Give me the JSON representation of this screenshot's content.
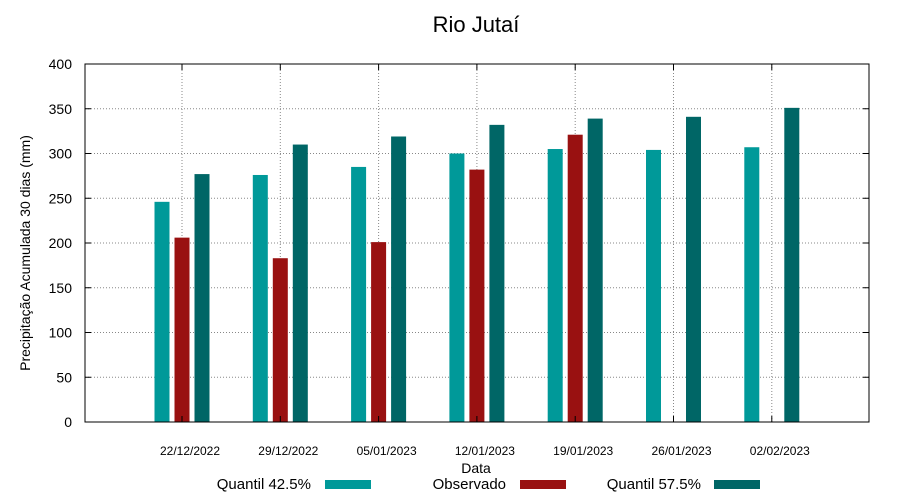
{
  "chart_data": {
    "type": "bar",
    "title": "Rio Jutaí",
    "xlabel": "Data",
    "ylabel": "Precipitação Acumulada 30 dias (mm)",
    "ylim": [
      0,
      400
    ],
    "yticks": [
      0,
      50,
      100,
      150,
      200,
      250,
      300,
      350,
      400
    ],
    "grid": true,
    "legend_position": "bottom",
    "categories": [
      "22/12/2022",
      "29/12/2022",
      "05/01/2023",
      "12/01/2023",
      "19/01/2023",
      "26/01/2023",
      "02/02/2023"
    ],
    "series": [
      {
        "name": "Quantil 42.5%",
        "color": "#009999",
        "values": [
          246,
          276,
          285,
          300,
          305,
          304,
          307
        ]
      },
      {
        "name": "Observado",
        "color": "#991111",
        "values": [
          206,
          183,
          201,
          282,
          321,
          null,
          null
        ]
      },
      {
        "name": "Quantil 57.5%",
        "color": "#006666",
        "values": [
          277,
          310,
          319,
          332,
          339,
          341,
          351
        ]
      }
    ]
  }
}
